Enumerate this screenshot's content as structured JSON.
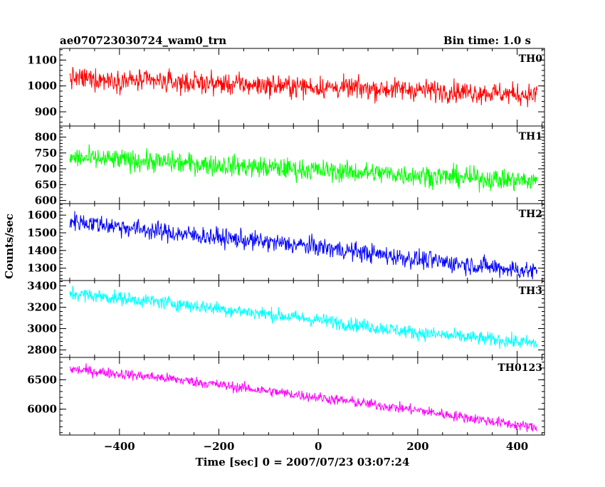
{
  "header": {
    "title": "ae070723030724_wam0_trn",
    "bin_time": "Bin time: 1.0 s"
  },
  "chart_data": {
    "type": "line",
    "title": "ae070723030724_wam0_trn",
    "subtitle": "Bin time: 1.0 s",
    "xlabel": "Time [sec] 0 = 2007/07/23 03:07:24",
    "ylabel": "Counts/sec",
    "xlim": [
      -520,
      455
    ],
    "x_range": [
      -500,
      440
    ],
    "x_step": 1,
    "xticks": [
      -400,
      -200,
      0,
      200,
      400
    ],
    "xtick_labels": [
      "−400",
      "−200",
      "0",
      "200",
      "400"
    ],
    "grid": false,
    "legend": "none",
    "series": [
      {
        "name": "TH0",
        "color": "#ff0000",
        "ylim": [
          845,
          1145
        ],
        "yticks": [
          900,
          1000,
          1100
        ],
        "ytick_labels": [
          "900",
          "1000",
          "1100"
        ],
        "trend": [
          [
            -500,
            1030
          ],
          [
            -300,
            1015
          ],
          [
            0,
            995
          ],
          [
            200,
            985
          ],
          [
            440,
            965
          ]
        ],
        "noise": 35
      },
      {
        "name": "TH1",
        "color": "#00ff00",
        "ylim": [
          590,
          835
        ],
        "yticks": [
          600,
          650,
          700,
          750,
          800
        ],
        "ytick_labels": [
          "600",
          "650",
          "700",
          "750",
          "800"
        ],
        "trend": [
          [
            -500,
            735
          ],
          [
            -300,
            720
          ],
          [
            0,
            695
          ],
          [
            200,
            680
          ],
          [
            440,
            660
          ]
        ],
        "noise": 28
      },
      {
        "name": "TH2",
        "color": "#0000ff",
        "ylim": [
          1230,
          1665
        ],
        "yticks": [
          1300,
          1400,
          1500,
          1600
        ],
        "ytick_labels": [
          "1300",
          "1400",
          "1500",
          "1600"
        ],
        "trend": [
          [
            -500,
            1570
          ],
          [
            -300,
            1500
          ],
          [
            0,
            1420
          ],
          [
            200,
            1350
          ],
          [
            440,
            1280
          ]
        ],
        "noise": 45
      },
      {
        "name": "TH3",
        "color": "#00ffff",
        "ylim": [
          2730,
          3450
        ],
        "yticks": [
          2800,
          3000,
          3200,
          3400
        ],
        "ytick_labels": [
          "2800",
          "3000",
          "3200",
          "3400"
        ],
        "trend": [
          [
            -500,
            3330
          ],
          [
            -300,
            3240
          ],
          [
            0,
            3080
          ],
          [
            200,
            2960
          ],
          [
            440,
            2860
          ]
        ],
        "noise": 55
      },
      {
        "name": "TH0123",
        "color": "#ff00ff",
        "ylim": [
          5560,
          6880
        ],
        "yticks": [
          6000,
          6500
        ],
        "ytick_labels": [
          "6000",
          "6500"
        ],
        "trend": [
          [
            -500,
            6680
          ],
          [
            -300,
            6520
          ],
          [
            0,
            6200
          ],
          [
            200,
            5980
          ],
          [
            440,
            5680
          ]
        ],
        "noise": 75
      }
    ]
  }
}
